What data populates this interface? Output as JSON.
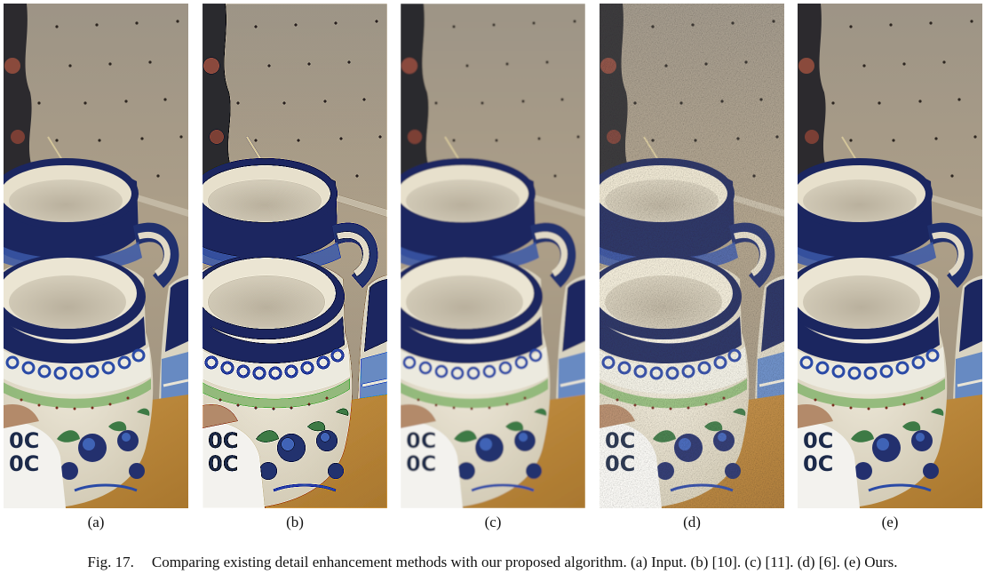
{
  "figure": {
    "panels": [
      {
        "label": "(a)",
        "variant": "input"
      },
      {
        "label": "(b)",
        "variant": "sharp"
      },
      {
        "label": "(c)",
        "variant": "smooth"
      },
      {
        "label": "(d)",
        "variant": "grainy"
      },
      {
        "label": "(e)",
        "variant": "ours"
      }
    ],
    "caption": {
      "number": "Fig. 17.",
      "text": "Comparing existing detail enhancement methods with our proposed algorithm. (a) Input. (b) [10]. (c) [11]. (d) [6]. (e) Ours."
    }
  },
  "colors": {
    "wall": "#a69a86",
    "shelf": "#c08a3c",
    "cream": "#e8e2cf",
    "cobalt": "#1b2660",
    "green": "#6ea05a"
  }
}
